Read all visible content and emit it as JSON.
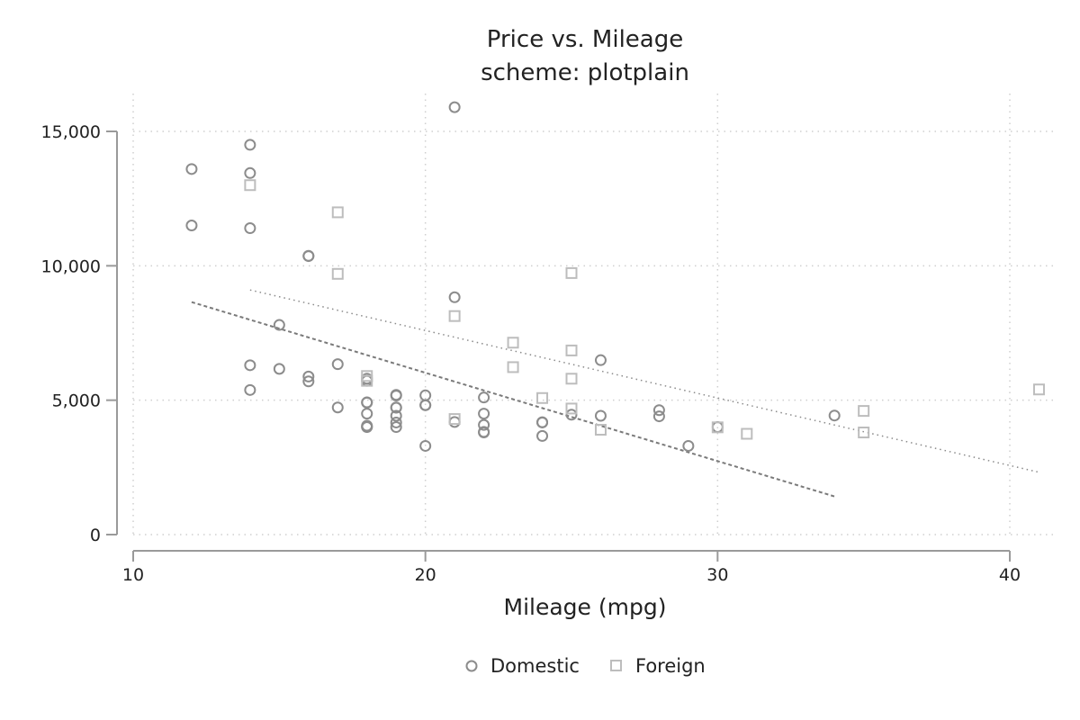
{
  "chart_data": {
    "type": "scatter",
    "title": "Price vs. Mileage",
    "subtitle": "scheme: plotplain",
    "xlabel": "Mileage (mpg)",
    "ylabel": "",
    "xlim": [
      10,
      41
    ],
    "ylim": [
      0,
      16000
    ],
    "x_ticks": [
      {
        "value": 10,
        "label": "10"
      },
      {
        "value": 20,
        "label": "20"
      },
      {
        "value": 30,
        "label": "30"
      },
      {
        "value": 40,
        "label": "40"
      }
    ],
    "y_ticks": [
      {
        "value": 0,
        "label": "0"
      },
      {
        "value": 5000,
        "label": "5,000"
      },
      {
        "value": 10000,
        "label": "10,000"
      },
      {
        "value": 15000,
        "label": "15,000"
      }
    ],
    "grid": true,
    "legend_position": "bottom",
    "series": [
      {
        "name": "Domestic",
        "marker": "circle",
        "color": "#8c8c8c",
        "x": [
          12,
          12,
          14,
          14,
          14,
          14,
          14,
          15,
          15,
          16,
          16,
          16,
          16,
          17,
          17,
          18,
          18,
          18,
          18,
          18,
          18,
          18,
          18,
          19,
          19,
          19,
          19,
          19,
          19,
          19,
          20,
          20,
          20,
          20,
          21,
          21,
          21,
          22,
          22,
          22,
          22,
          22,
          24,
          24,
          24,
          25,
          26,
          26,
          28,
          28,
          29,
          30,
          34
        ],
        "y": [
          13600,
          11500,
          14500,
          13450,
          11400,
          6300,
          5380,
          7800,
          6165,
          10370,
          10360,
          5880,
          5700,
          6340,
          4730,
          5800,
          5720,
          4920,
          4910,
          4500,
          4050,
          4010,
          4000,
          5200,
          5170,
          4730,
          4720,
          4420,
          4170,
          4000,
          5180,
          4820,
          4810,
          3300,
          15900,
          8830,
          4190,
          5100,
          4500,
          4080,
          3820,
          3800,
          4180,
          4170,
          3670,
          4460,
          6490,
          4420,
          4630,
          4400,
          3300,
          4000,
          4430
        ]
      },
      {
        "name": "Foreign",
        "marker": "square",
        "color": "#bdbdbd",
        "x": [
          14,
          17,
          17,
          18,
          18,
          21,
          21,
          23,
          23,
          24,
          25,
          25,
          25,
          25,
          26,
          30,
          31,
          35,
          35,
          41
        ],
        "y": [
          13000,
          11990,
          9700,
          5900,
          5720,
          8130,
          4300,
          7140,
          6230,
          5080,
          9730,
          6850,
          5800,
          4690,
          3900,
          3990,
          3750,
          4600,
          3800,
          5400
        ]
      }
    ],
    "fit_lines": [
      {
        "series": "Domestic",
        "x": [
          12,
          34
        ],
        "y": [
          8650,
          1420
        ],
        "color": "#7a7a7a"
      },
      {
        "series": "Foreign",
        "x": [
          14,
          41
        ],
        "y": [
          9100,
          2320
        ],
        "color": "#8a8a8a"
      }
    ]
  }
}
